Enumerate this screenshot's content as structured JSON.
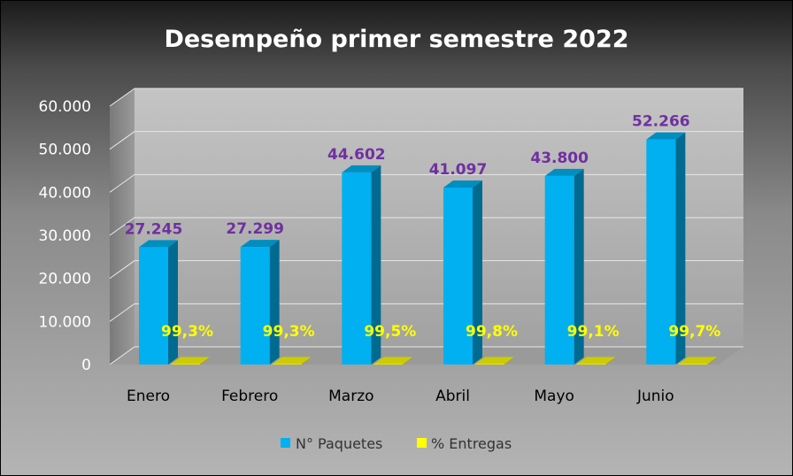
{
  "chart_data": {
    "type": "bar",
    "title": "Desempeño primer semestre 2022",
    "categories": [
      "Enero",
      "Febrero",
      "Marzo",
      "Abril",
      "Mayo",
      "Junio"
    ],
    "yticks": [
      "0",
      "10.000",
      "20.000",
      "30.000",
      "40.000",
      "50.000",
      "60.000"
    ],
    "ylim": [
      0,
      60000
    ],
    "grid": true,
    "legend_position": "bottom",
    "series": [
      {
        "name": "N° Paquetes",
        "color": "#00b0f0",
        "values": [
          27245,
          27299,
          44602,
          41097,
          43800,
          52266
        ],
        "labels": [
          "27.245",
          "27.299",
          "44.602",
          "41.097",
          "43.800",
          "52.266"
        ]
      },
      {
        "name": "% Entregas",
        "color": "#ffff00",
        "values": [
          99.3,
          99.3,
          99.5,
          99.8,
          99.1,
          99.7
        ],
        "labels": [
          "99,3%",
          "99,3%",
          "99,5%",
          "99,8%",
          "99,1%",
          "99,7%"
        ]
      }
    ]
  }
}
